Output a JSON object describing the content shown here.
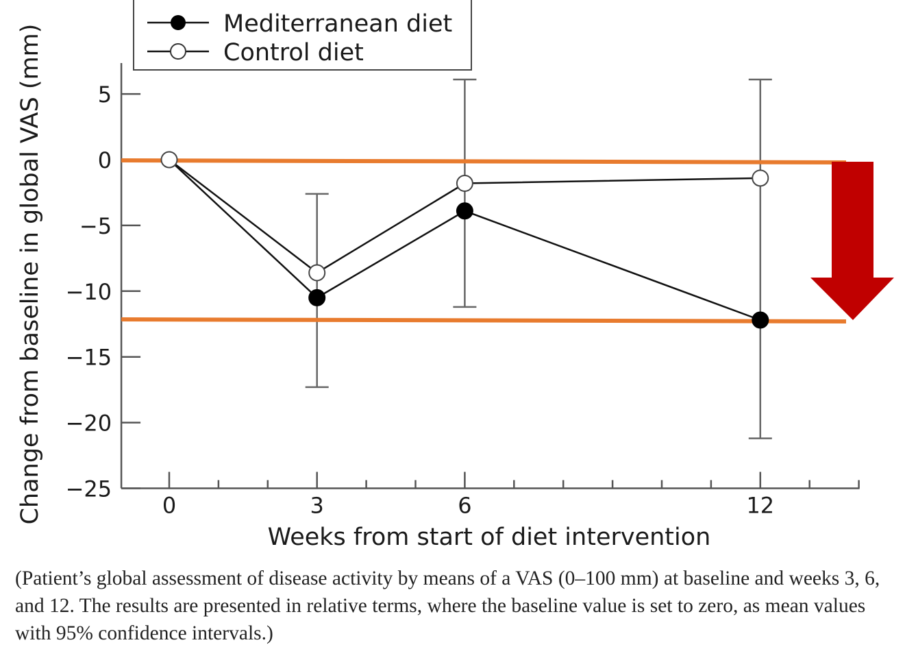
{
  "chart_data": {
    "type": "line",
    "title": "",
    "xlabel": "Weeks from start of diet intervention",
    "ylabel": "Change from baseline in global VAS (mm)",
    "xlim": [
      -1,
      14
    ],
    "ylim": [
      -25,
      7
    ],
    "x_major_ticks": [
      0,
      3,
      6,
      12
    ],
    "x_minor_ticks": [
      1,
      2,
      4,
      5,
      7,
      8,
      9,
      10,
      11,
      13,
      14
    ],
    "x_tick_labels": [
      "0",
      "3",
      "6",
      "12"
    ],
    "y_ticks": [
      5,
      0,
      -5,
      -10,
      -15,
      -20,
      -25
    ],
    "y_tick_labels": [
      "5",
      "0",
      "−5",
      "−10",
      "−15",
      "−20",
      "−25"
    ],
    "grid": false,
    "legend_position": "top-left",
    "x": [
      0,
      3,
      6,
      12
    ],
    "series": [
      {
        "name": "Mediterranean diet",
        "marker": "filled-circle",
        "values": [
          0,
          -10.5,
          -3.9,
          -12.2
        ],
        "ci_lower": [
          0,
          -17.3,
          -11.2,
          -21.2
        ],
        "ci_upper": [
          0,
          -2.6,
          6.1,
          6.1
        ]
      },
      {
        "name": "Control diet",
        "marker": "open-circle",
        "values": [
          0,
          -8.6,
          -1.8,
          -1.4
        ]
      }
    ],
    "annotations": [
      {
        "type": "horizontal-line",
        "label": "baseline-reference",
        "y": 0,
        "color": "#e87b2e"
      },
      {
        "type": "horizontal-line",
        "label": "mediterranean-week-12-level",
        "y": -12.2,
        "color": "#e87b2e"
      },
      {
        "type": "down-arrow",
        "from_y": 0,
        "to_y": -12.2,
        "color": "#c00000"
      }
    ]
  },
  "caption": "(Patient’s global assessment of disease activity by means of a VAS (0–100 mm) at baseline and weeks 3, 6, and 12. The results are presented in relative terms, where the baseline value is set to zero, as mean values with 95% confidence intervals.)"
}
